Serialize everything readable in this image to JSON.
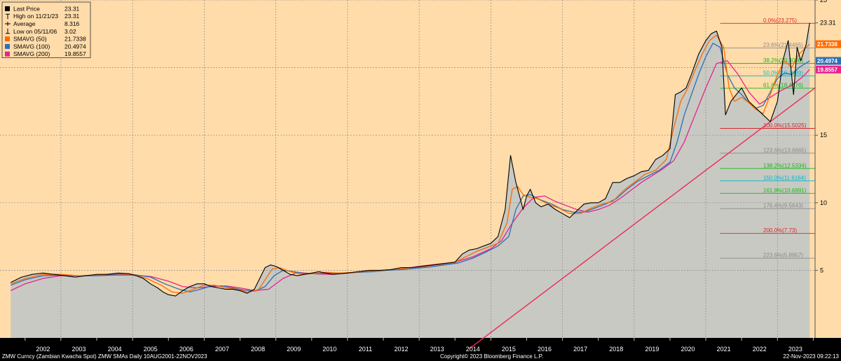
{
  "chart_data": {
    "type": "line",
    "ylim": [
      0,
      25
    ],
    "xlim": [
      2001.3,
      2024.05
    ],
    "grid": true,
    "legend_position": "top-left",
    "legend": [
      {
        "label": "Last Price",
        "value": "23.31",
        "color": "#000000",
        "kind": "box"
      },
      {
        "label": "High on 11/21/23",
        "value": "23.31",
        "color": "#000000",
        "kind": "high"
      },
      {
        "label": "Average",
        "value": "8.316",
        "color": "#000000",
        "kind": "avg"
      },
      {
        "label": "Low on 05/11/06",
        "value": "3.02",
        "color": "#000000",
        "kind": "low"
      },
      {
        "label": "SMAVG (50)",
        "value": "21.7338",
        "color": "#ff6a00",
        "kind": "box"
      },
      {
        "label": "SMAVG (100)",
        "value": "20.4974",
        "color": "#2d6fb5",
        "kind": "box"
      },
      {
        "label": "SMAVG (200)",
        "value": "19.8557",
        "color": "#e8238c",
        "kind": "box"
      }
    ],
    "y_ticks": [
      "25",
      "23.31",
      "15",
      "10",
      "5"
    ],
    "y_tick_values": [
      25,
      23.31,
      15,
      10,
      5
    ],
    "x_ticks": [
      "2002",
      "2003",
      "2004",
      "2005",
      "2006",
      "2007",
      "2008",
      "2009",
      "2010",
      "2011",
      "2012",
      "2013",
      "2014",
      "2015",
      "2016",
      "2017",
      "2018",
      "2019",
      "2020",
      "2021",
      "2022",
      "2023"
    ],
    "x_tick_values": [
      2002.5,
      2003.5,
      2004.5,
      2005.5,
      2006.5,
      2007.5,
      2008.5,
      2009.5,
      2010.5,
      2011.5,
      2012.5,
      2013.5,
      2014.5,
      2015.5,
      2016.5,
      2017.5,
      2018.5,
      2019.5,
      2020.5,
      2021.5,
      2022.5,
      2023.5
    ],
    "price_tags": [
      {
        "label": "21.7338",
        "value": 21.7338,
        "color": "#ff6a00"
      },
      {
        "label": "20.4974",
        "value": 20.4974,
        "color": "#2d6fb5"
      },
      {
        "label": "19.8557",
        "value": 19.8557,
        "color": "#e8238c"
      }
    ],
    "fib_levels": [
      {
        "label": "0.0%(23.275)",
        "value": 23.275,
        "color": "#d8252c"
      },
      {
        "label": "23.6%(21.4465)",
        "value": 21.4465,
        "color": "#8a8a8a"
      },
      {
        "label": "38.2%(20.3098)",
        "value": 20.3098,
        "color": "#18b818"
      },
      {
        "label": "50.0%(19.3889)",
        "value": 19.3889,
        "color": "#00b8c8"
      },
      {
        "label": "61.8%(18.4776)",
        "value": 18.4776,
        "color": "#18b818"
      },
      {
        "label": "100.0%(15.5025)",
        "value": 15.5025,
        "color": "#d8252c"
      },
      {
        "label": "123.6%(13.6665)",
        "value": 13.6665,
        "color": "#8a8a8a"
      },
      {
        "label": "138.2%(12.5334)",
        "value": 12.5334,
        "color": "#18b818"
      },
      {
        "label": "150.0%(11.6164)",
        "value": 11.6164,
        "color": "#00b8c8"
      },
      {
        "label": "161.8%(10.6991)",
        "value": 10.6991,
        "color": "#18b818"
      },
      {
        "label": "176.4%(9.5643)",
        "value": 9.5643,
        "color": "#8a8a8a"
      },
      {
        "label": "200.0%(7.73)",
        "value": 7.73,
        "color": "#d8252c"
      },
      {
        "label": "223.6%(5.8957)",
        "value": 5.8957,
        "color": "#8a8a8a"
      }
    ],
    "trendline": {
      "x": [
        2014.4,
        2024.05
      ],
      "y": [
        -0.8,
        18.5
      ],
      "color": "#ee2a52"
    },
    "series": [
      {
        "name": "Last Price",
        "color": "#000000",
        "x": [
          2001.6,
          2001.9,
          2002.2,
          2002.5,
          2002.8,
          2003.1,
          2003.4,
          2003.7,
          2004.0,
          2004.3,
          2004.6,
          2004.9,
          2005.1,
          2005.3,
          2005.5,
          2005.7,
          2005.85,
          2006.0,
          2006.2,
          2006.4,
          2006.6,
          2006.8,
          2007.0,
          2007.2,
          2007.4,
          2007.6,
          2007.8,
          2008.0,
          2008.2,
          2008.4,
          2008.55,
          2008.7,
          2008.85,
          2009.0,
          2009.2,
          2009.4,
          2009.6,
          2009.8,
          2010.0,
          2010.2,
          2010.4,
          2010.6,
          2010.8,
          2011.0,
          2011.3,
          2011.6,
          2011.9,
          2012.2,
          2012.5,
          2012.8,
          2013.1,
          2013.4,
          2013.7,
          2014.0,
          2014.2,
          2014.4,
          2014.6,
          2014.8,
          2015.0,
          2015.2,
          2015.4,
          2015.55,
          2015.7,
          2015.8,
          2015.9,
          2016.0,
          2016.1,
          2016.25,
          2016.4,
          2016.6,
          2016.8,
          2017.0,
          2017.2,
          2017.4,
          2017.6,
          2017.8,
          2018.0,
          2018.2,
          2018.4,
          2018.6,
          2018.8,
          2019.0,
          2019.2,
          2019.4,
          2019.6,
          2019.8,
          2020.0,
          2020.15,
          2020.3,
          2020.45,
          2020.6,
          2020.8,
          2021.0,
          2021.15,
          2021.3,
          2021.45,
          2021.55,
          2021.7,
          2021.85,
          2022.0,
          2022.2,
          2022.4,
          2022.6,
          2022.8,
          2023.0,
          2023.15,
          2023.3,
          2023.45,
          2023.55,
          2023.65,
          2023.8,
          2023.9
        ],
        "y": [
          4.1,
          4.5,
          4.7,
          4.8,
          4.7,
          4.6,
          4.5,
          4.6,
          4.7,
          4.7,
          4.8,
          4.75,
          4.6,
          4.4,
          4.0,
          3.7,
          3.4,
          3.2,
          3.1,
          3.5,
          3.8,
          4.0,
          4.0,
          3.8,
          3.7,
          3.6,
          3.6,
          3.5,
          3.3,
          3.6,
          4.4,
          5.2,
          5.4,
          5.3,
          5.0,
          4.7,
          4.6,
          4.7,
          4.8,
          4.9,
          4.8,
          4.7,
          4.75,
          4.8,
          4.9,
          5.0,
          5.0,
          5.05,
          5.2,
          5.2,
          5.3,
          5.4,
          5.5,
          5.6,
          6.2,
          6.5,
          6.6,
          6.8,
          7.0,
          7.5,
          9.5,
          13.5,
          11.5,
          10.5,
          9.5,
          10.5,
          11.0,
          10.0,
          9.7,
          9.9,
          9.5,
          9.2,
          8.9,
          9.4,
          9.9,
          10.0,
          10.0,
          10.3,
          11.5,
          11.5,
          11.8,
          12.0,
          12.3,
          12.4,
          13.2,
          13.5,
          14.0,
          18.0,
          18.2,
          18.5,
          19.5,
          21.0,
          22.0,
          22.5,
          22.7,
          21.5,
          16.5,
          17.5,
          18.0,
          18.5,
          17.5,
          17.0,
          16.5,
          16.0,
          17.5,
          20.5,
          22.0,
          18.0,
          21.5,
          20.5,
          21.7,
          23.31
        ]
      },
      {
        "name": "SMAVG (50)",
        "color": "#ff6a00",
        "x": [
          2001.6,
          2002.0,
          2002.5,
          2003.0,
          2003.5,
          2004.0,
          2004.5,
          2005.0,
          2005.4,
          2005.8,
          2006.1,
          2006.4,
          2006.7,
          2007.0,
          2007.3,
          2007.6,
          2007.9,
          2008.2,
          2008.5,
          2008.7,
          2008.9,
          2009.1,
          2009.4,
          2009.7,
          2010.0,
          2010.4,
          2010.8,
          2011.2,
          2011.6,
          2012.0,
          2012.4,
          2012.8,
          2013.2,
          2013.6,
          2014.0,
          2014.3,
          2014.6,
          2014.9,
          2015.2,
          2015.45,
          2015.6,
          2015.75,
          2015.9,
          2016.1,
          2016.3,
          2016.6,
          2016.9,
          2017.2,
          2017.5,
          2017.8,
          2018.1,
          2018.4,
          2018.7,
          2019.0,
          2019.3,
          2019.6,
          2019.9,
          2020.1,
          2020.3,
          2020.5,
          2020.7,
          2020.9,
          2021.1,
          2021.3,
          2021.5,
          2021.65,
          2021.8,
          2022.0,
          2022.2,
          2022.4,
          2022.6,
          2022.8,
          2023.0,
          2023.2,
          2023.4,
          2023.6,
          2023.9
        ],
        "y": [
          4.0,
          4.4,
          4.7,
          4.7,
          4.6,
          4.65,
          4.75,
          4.7,
          4.4,
          3.9,
          3.4,
          3.3,
          3.6,
          3.9,
          3.9,
          3.7,
          3.6,
          3.4,
          3.5,
          4.3,
          5.1,
          5.2,
          4.9,
          4.7,
          4.75,
          4.85,
          4.8,
          4.85,
          4.95,
          5.0,
          5.1,
          5.2,
          5.3,
          5.45,
          5.6,
          6.0,
          6.4,
          6.7,
          7.0,
          8.5,
          11.0,
          11.2,
          10.6,
          10.4,
          10.3,
          9.9,
          9.6,
          9.2,
          9.2,
          9.6,
          9.9,
          10.1,
          10.9,
          11.5,
          12.1,
          12.4,
          13.2,
          15.5,
          17.5,
          18.5,
          19.8,
          21.0,
          22.0,
          22.4,
          21.5,
          18.5,
          17.5,
          17.8,
          17.4,
          16.9,
          16.6,
          18.0,
          19.5,
          20.5,
          20.0,
          21.0,
          21.73
        ]
      },
      {
        "name": "SMAVG (100)",
        "color": "#2d6fb5",
        "x": [
          2001.6,
          2002.0,
          2002.5,
          2003.0,
          2003.5,
          2004.0,
          2004.5,
          2005.0,
          2005.5,
          2005.9,
          2006.3,
          2006.6,
          2006.9,
          2007.2,
          2007.5,
          2007.8,
          2008.1,
          2008.4,
          2008.7,
          2008.95,
          2009.2,
          2009.5,
          2009.8,
          2010.1,
          2010.5,
          2010.9,
          2011.3,
          2011.7,
          2012.1,
          2012.5,
          2012.9,
          2013.3,
          2013.7,
          2014.1,
          2014.5,
          2014.9,
          2015.2,
          2015.5,
          2015.7,
          2015.9,
          2016.1,
          2016.4,
          2016.7,
          2017.0,
          2017.3,
          2017.6,
          2017.9,
          2018.2,
          2018.5,
          2018.8,
          2019.1,
          2019.4,
          2019.7,
          2020.0,
          2020.2,
          2020.4,
          2020.6,
          2020.8,
          2021.0,
          2021.2,
          2021.4,
          2021.6,
          2021.8,
          2022.0,
          2022.2,
          2022.4,
          2022.6,
          2022.8,
          2023.0,
          2023.2,
          2023.4,
          2023.6,
          2023.9
        ],
        "y": [
          3.9,
          4.3,
          4.6,
          4.65,
          4.6,
          4.6,
          4.7,
          4.7,
          4.5,
          4.0,
          3.6,
          3.4,
          3.6,
          3.85,
          3.85,
          3.7,
          3.55,
          3.45,
          3.8,
          4.6,
          5.0,
          4.9,
          4.75,
          4.75,
          4.8,
          4.8,
          4.85,
          4.9,
          5.0,
          5.05,
          5.15,
          5.25,
          5.4,
          5.55,
          5.9,
          6.4,
          6.8,
          7.5,
          9.5,
          10.5,
          10.6,
          10.2,
          9.9,
          9.5,
          9.3,
          9.3,
          9.6,
          9.9,
          10.3,
          11.0,
          11.6,
          12.0,
          12.4,
          13.0,
          14.5,
          16.5,
          18.0,
          19.5,
          20.8,
          21.8,
          21.5,
          19.5,
          18.5,
          18.0,
          17.4,
          17.0,
          17.2,
          18.2,
          19.2,
          19.6,
          19.5,
          20.0,
          20.5
        ]
      },
      {
        "name": "SMAVG (200)",
        "color": "#e8238c",
        "x": [
          2001.6,
          2002.0,
          2002.5,
          2003.0,
          2003.5,
          2004.0,
          2004.5,
          2005.0,
          2005.5,
          2006.0,
          2006.4,
          2006.8,
          2007.2,
          2007.6,
          2008.0,
          2008.4,
          2008.8,
          2009.2,
          2009.6,
          2010.0,
          2010.5,
          2011.0,
          2011.5,
          2012.0,
          2012.5,
          2013.0,
          2013.5,
          2014.0,
          2014.5,
          2015.0,
          2015.3,
          2015.6,
          2015.9,
          2016.2,
          2016.5,
          2016.8,
          2017.1,
          2017.4,
          2017.7,
          2018.0,
          2018.3,
          2018.6,
          2018.9,
          2019.2,
          2019.5,
          2019.8,
          2020.1,
          2020.4,
          2020.7,
          2021.0,
          2021.3,
          2021.6,
          2021.9,
          2022.2,
          2022.5,
          2022.8,
          2023.1,
          2023.4,
          2023.7,
          2023.9
        ],
        "y": [
          3.5,
          4.0,
          4.4,
          4.6,
          4.6,
          4.6,
          4.65,
          4.65,
          4.55,
          4.2,
          3.8,
          3.7,
          3.8,
          3.85,
          3.7,
          3.5,
          3.6,
          4.4,
          4.85,
          4.75,
          4.7,
          4.8,
          4.9,
          5.0,
          5.1,
          5.3,
          5.45,
          5.6,
          6.0,
          6.6,
          7.2,
          8.5,
          9.6,
          10.4,
          10.5,
          10.1,
          9.8,
          9.5,
          9.3,
          9.5,
          9.8,
          10.3,
          10.9,
          11.5,
          12.0,
          12.5,
          13.1,
          14.5,
          16.5,
          18.5,
          20.3,
          20.5,
          19.5,
          18.2,
          17.3,
          17.8,
          18.3,
          18.7,
          19.3,
          19.86
        ]
      }
    ]
  },
  "footer": {
    "left": "ZMW Curncy (Zambian Kwacha Spot) ZMW SMAs  Daily 10AUG2001-22NOV2023",
    "center": "Copyright© 2023 Bloomberg Finance L.P.",
    "right": "22-Nov-2023 09:22:13"
  },
  "colors": {
    "plot_bg": "#ffdcaa",
    "area_fill": "#c8c9c3",
    "axis_bg": "#000000",
    "grid": "#8c8c8c"
  }
}
